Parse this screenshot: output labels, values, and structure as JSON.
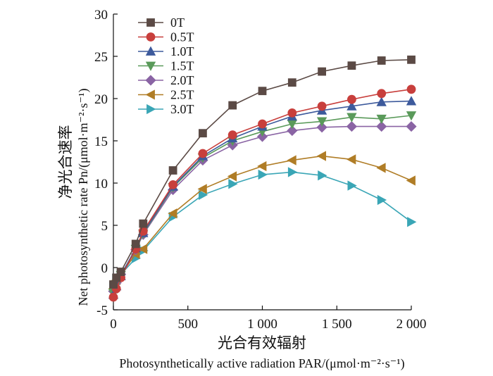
{
  "chart_data": {
    "type": "line",
    "xlabel_cn": "光合有效辐射",
    "xlabel_en": "Photosynthetically active radiation PAR/(μmol·m⁻²·s⁻¹)",
    "ylabel_cn": "净光合速率",
    "ylabel_en": "Net photosynthetic rate Pn/(μmol·m⁻²·s⁻¹)",
    "xlim": [
      0,
      2000
    ],
    "ylim": [
      -5,
      30
    ],
    "xticks": [
      0,
      500,
      1000,
      1500,
      2000
    ],
    "xtick_labels": [
      "0",
      "500",
      "1 000",
      "1 500",
      "2 000"
    ],
    "yticks": [
      -5,
      0,
      5,
      10,
      15,
      20,
      25,
      30
    ],
    "ytick_labels": [
      "-5",
      "0",
      "5",
      "10",
      "15",
      "20",
      "25",
      "30"
    ],
    "x": [
      0,
      20,
      50,
      150,
      200,
      400,
      600,
      800,
      1000,
      1200,
      1400,
      1600,
      1800,
      2000
    ],
    "legend_position": "top-left",
    "series": [
      {
        "name": "0T",
        "marker": "square",
        "color": "#5b4a45",
        "values": [
          -2.0,
          -1.2,
          -0.5,
          2.8,
          5.2,
          11.5,
          15.9,
          19.2,
          20.9,
          21.9,
          23.2,
          23.9,
          24.5,
          24.6
        ]
      },
      {
        "name": "0.5T",
        "marker": "circle",
        "color": "#c83f3c",
        "values": [
          -3.5,
          -2.5,
          -1.2,
          2.2,
          4.3,
          9.8,
          13.5,
          15.7,
          17.0,
          18.3,
          19.1,
          19.9,
          20.6,
          21.1
        ]
      },
      {
        "name": "1.0T",
        "marker": "triangle-up",
        "color": "#3d5a9c",
        "values": [
          -3.2,
          -2.2,
          -1.0,
          2.3,
          4.1,
          9.6,
          13.2,
          15.3,
          16.7,
          17.9,
          18.6,
          19.1,
          19.6,
          19.7
        ]
      },
      {
        "name": "1.5T",
        "marker": "triangle-down",
        "color": "#5a9a5a",
        "values": [
          -3.0,
          -2.0,
          -0.9,
          2.2,
          4.0,
          9.5,
          13.0,
          15.0,
          16.1,
          17.0,
          17.3,
          17.8,
          17.6,
          18.0
        ]
      },
      {
        "name": "2.0T",
        "marker": "diamond",
        "color": "#8a64a4",
        "values": [
          -2.8,
          -1.8,
          -0.8,
          2.1,
          3.9,
          9.2,
          12.7,
          14.5,
          15.5,
          16.2,
          16.6,
          16.7,
          16.7,
          16.7
        ]
      },
      {
        "name": "2.5T",
        "marker": "triangle-left",
        "color": "#b07d26",
        "values": [
          -2.5,
          -1.5,
          -0.8,
          1.6,
          2.2,
          6.4,
          9.3,
          10.8,
          12.0,
          12.7,
          13.2,
          12.8,
          11.8,
          10.3
        ]
      },
      {
        "name": "3.0T",
        "marker": "triangle-right",
        "color": "#3aa6b6",
        "values": [
          -2.3,
          -1.3,
          -0.8,
          1.1,
          2.0,
          6.0,
          8.6,
          9.9,
          11.0,
          11.3,
          10.9,
          9.7,
          8.0,
          5.4
        ]
      }
    ]
  }
}
